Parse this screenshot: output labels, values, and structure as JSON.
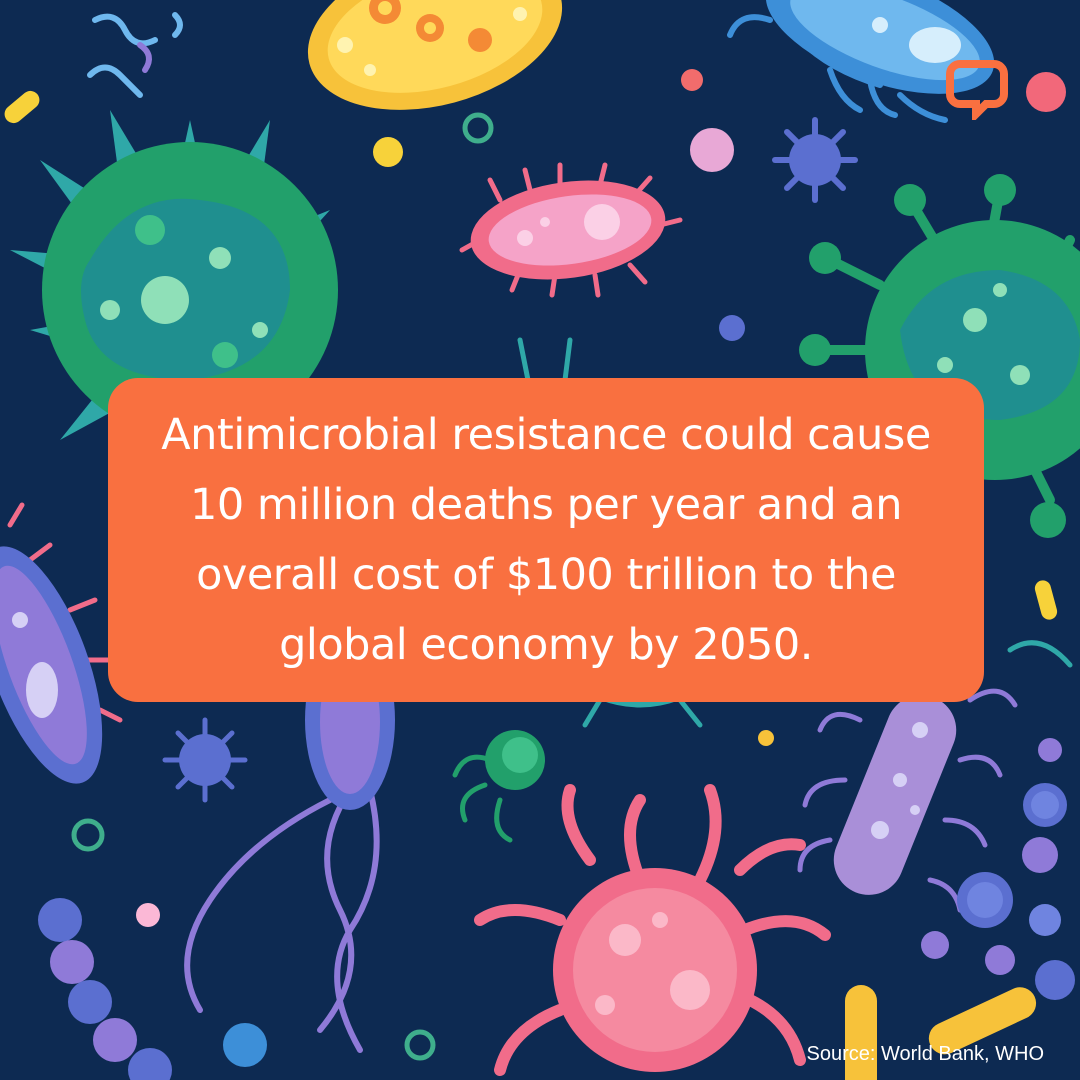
{
  "post": {
    "headline": "Antimicrobial resistance could cause 10 million deaths per year and an overall cost of $100 trillion to the global economy by 2050.",
    "source": "Source: World Bank, WHO"
  },
  "colors": {
    "background": "#0d2a52",
    "headline_box": "#f97040",
    "text": "#ffffff",
    "logo_orange": "#f97040",
    "logo_pink": "#f2687a"
  },
  "icons": {
    "logo": "speech-bubble-logo-icon",
    "illustration": "microbe-pattern-illustration"
  }
}
